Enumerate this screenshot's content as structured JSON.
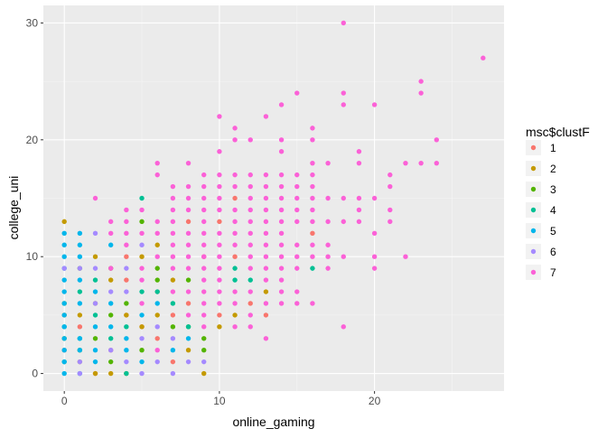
{
  "chart_data": {
    "type": "scatter",
    "xlabel": "online_gaming",
    "ylabel": "college_uni",
    "xlim": [
      -1.35,
      28.35
    ],
    "ylim": [
      -1.5,
      31.5
    ],
    "x_ticks": [
      0,
      10,
      20
    ],
    "y_ticks": [
      0,
      10,
      20,
      30
    ],
    "x_tick_labels": [
      "0",
      "10",
      "20"
    ],
    "y_tick_labels": [
      "0",
      "10",
      "20",
      "30"
    ],
    "grid": true,
    "legend": {
      "title": "msc$clustF",
      "position": "right",
      "entries": [
        "1",
        "2",
        "3",
        "4",
        "5",
        "6",
        "7"
      ]
    },
    "colors": {
      "1": "#F8766D",
      "2": "#C49A00",
      "3": "#53B400",
      "4": "#00C094",
      "5": "#00B6EB",
      "6": "#A58AFF",
      "7": "#FB61D7"
    },
    "series": [
      {
        "name": "1",
        "points": [
          [
            0,
            2
          ],
          [
            1,
            4
          ],
          [
            2,
            0
          ],
          [
            3,
            2
          ],
          [
            4,
            5
          ],
          [
            4,
            8
          ],
          [
            5,
            4
          ],
          [
            6,
            3
          ],
          [
            7,
            1
          ],
          [
            7,
            5
          ],
          [
            8,
            13
          ],
          [
            8,
            6
          ],
          [
            9,
            10
          ],
          [
            10,
            13
          ],
          [
            10,
            5
          ],
          [
            11,
            15
          ],
          [
            11,
            10
          ],
          [
            12,
            6
          ],
          [
            13,
            5
          ],
          [
            16,
            12
          ],
          [
            4,
            10
          ],
          [
            6,
            7
          ]
        ]
      },
      {
        "name": "2",
        "points": [
          [
            0,
            13
          ],
          [
            0,
            5
          ],
          [
            1,
            5
          ],
          [
            1,
            1
          ],
          [
            2,
            0
          ],
          [
            2,
            6
          ],
          [
            3,
            0
          ],
          [
            3,
            8
          ],
          [
            4,
            5
          ],
          [
            5,
            10
          ],
          [
            5,
            4
          ],
          [
            6,
            11
          ],
          [
            6,
            5
          ],
          [
            7,
            8
          ],
          [
            8,
            2
          ],
          [
            9,
            0
          ],
          [
            10,
            4
          ],
          [
            11,
            5
          ],
          [
            13,
            7
          ],
          [
            2,
            10
          ],
          [
            4,
            0
          ]
        ]
      },
      {
        "name": "3",
        "points": [
          [
            0,
            6
          ],
          [
            0,
            3
          ],
          [
            1,
            9
          ],
          [
            1,
            2
          ],
          [
            2,
            3
          ],
          [
            3,
            5
          ],
          [
            3,
            1
          ],
          [
            4,
            6
          ],
          [
            5,
            13
          ],
          [
            5,
            2
          ],
          [
            6,
            9
          ],
          [
            7,
            4
          ],
          [
            8,
            8
          ],
          [
            9,
            2
          ],
          [
            3,
            9
          ],
          [
            6,
            8
          ],
          [
            9,
            3
          ],
          [
            8,
            4
          ]
        ]
      },
      {
        "name": "4",
        "points": [
          [
            0,
            4
          ],
          [
            0,
            1
          ],
          [
            1,
            7
          ],
          [
            1,
            3
          ],
          [
            2,
            8
          ],
          [
            2,
            5
          ],
          [
            3,
            3
          ],
          [
            4,
            0
          ],
          [
            5,
            15
          ],
          [
            5,
            7
          ],
          [
            6,
            7
          ],
          [
            7,
            6
          ],
          [
            8,
            4
          ],
          [
            11,
            9
          ],
          [
            12,
            8
          ],
          [
            16,
            9
          ],
          [
            11,
            8
          ],
          [
            4,
            4
          ]
        ]
      },
      {
        "name": "5",
        "points": [
          [
            0,
            12
          ],
          [
            0,
            11
          ],
          [
            0,
            10
          ],
          [
            0,
            9
          ],
          [
            0,
            8
          ],
          [
            0,
            7
          ],
          [
            0,
            6
          ],
          [
            0,
            5
          ],
          [
            0,
            4
          ],
          [
            0,
            3
          ],
          [
            0,
            2
          ],
          [
            0,
            1
          ],
          [
            0,
            0
          ],
          [
            1,
            12
          ],
          [
            1,
            11
          ],
          [
            1,
            10
          ],
          [
            1,
            8
          ],
          [
            1,
            6
          ],
          [
            1,
            3
          ],
          [
            1,
            2
          ],
          [
            1,
            0
          ],
          [
            2,
            7
          ],
          [
            2,
            4
          ],
          [
            2,
            2
          ],
          [
            2,
            1
          ],
          [
            3,
            11
          ],
          [
            3,
            6
          ],
          [
            3,
            4
          ],
          [
            4,
            3
          ],
          [
            4,
            2
          ],
          [
            5,
            5
          ],
          [
            5,
            1
          ],
          [
            6,
            6
          ],
          [
            7,
            2
          ],
          [
            8,
            3
          ]
        ]
      },
      {
        "name": "6",
        "points": [
          [
            0,
            9
          ],
          [
            1,
            1
          ],
          [
            1,
            0
          ],
          [
            2,
            12
          ],
          [
            2,
            6
          ],
          [
            3,
            7
          ],
          [
            3,
            2
          ],
          [
            4,
            9
          ],
          [
            4,
            7
          ],
          [
            4,
            1
          ],
          [
            5,
            11
          ],
          [
            5,
            3
          ],
          [
            5,
            0
          ],
          [
            6,
            4
          ],
          [
            6,
            1
          ],
          [
            7,
            0
          ],
          [
            7,
            3
          ],
          [
            8,
            1
          ],
          [
            9,
            1
          ],
          [
            2,
            9
          ],
          [
            1,
            9
          ]
        ]
      },
      {
        "name": "7",
        "points": [
          [
            2,
            15
          ],
          [
            3,
            13
          ],
          [
            3,
            12
          ],
          [
            3,
            9
          ],
          [
            4,
            14
          ],
          [
            4,
            13
          ],
          [
            4,
            12
          ],
          [
            4,
            11
          ],
          [
            5,
            14
          ],
          [
            5,
            12
          ],
          [
            5,
            9
          ],
          [
            5,
            6
          ],
          [
            5,
            8
          ],
          [
            6,
            18
          ],
          [
            6,
            17
          ],
          [
            6,
            13
          ],
          [
            6,
            12
          ],
          [
            6,
            10
          ],
          [
            6,
            2
          ],
          [
            7,
            16
          ],
          [
            7,
            15
          ],
          [
            7,
            14
          ],
          [
            7,
            13
          ],
          [
            7,
            12
          ],
          [
            7,
            11
          ],
          [
            7,
            10
          ],
          [
            7,
            9
          ],
          [
            7,
            7
          ],
          [
            8,
            18
          ],
          [
            8,
            16
          ],
          [
            8,
            15
          ],
          [
            8,
            14
          ],
          [
            8,
            12
          ],
          [
            8,
            11
          ],
          [
            8,
            10
          ],
          [
            8,
            9
          ],
          [
            8,
            7
          ],
          [
            8,
            5
          ],
          [
            9,
            17
          ],
          [
            9,
            16
          ],
          [
            9,
            15
          ],
          [
            9,
            14
          ],
          [
            9,
            13
          ],
          [
            9,
            12
          ],
          [
            9,
            11
          ],
          [
            9,
            10
          ],
          [
            9,
            9
          ],
          [
            9,
            8
          ],
          [
            9,
            7
          ],
          [
            9,
            6
          ],
          [
            9,
            5
          ],
          [
            9,
            4
          ],
          [
            10,
            22
          ],
          [
            10,
            19
          ],
          [
            10,
            17
          ],
          [
            10,
            16
          ],
          [
            10,
            15
          ],
          [
            10,
            14
          ],
          [
            10,
            12
          ],
          [
            10,
            11
          ],
          [
            10,
            10
          ],
          [
            10,
            9
          ],
          [
            10,
            8
          ],
          [
            10,
            7
          ],
          [
            10,
            6
          ],
          [
            11,
            21
          ],
          [
            11,
            20
          ],
          [
            11,
            17
          ],
          [
            11,
            16
          ],
          [
            11,
            14
          ],
          [
            11,
            13
          ],
          [
            11,
            12
          ],
          [
            11,
            11
          ],
          [
            11,
            7
          ],
          [
            11,
            6
          ],
          [
            11,
            4
          ],
          [
            12,
            20
          ],
          [
            12,
            17
          ],
          [
            12,
            16
          ],
          [
            12,
            15
          ],
          [
            12,
            14
          ],
          [
            12,
            13
          ],
          [
            12,
            12
          ],
          [
            12,
            11
          ],
          [
            12,
            10
          ],
          [
            12,
            9
          ],
          [
            12,
            7
          ],
          [
            12,
            5
          ],
          [
            12,
            4
          ],
          [
            13,
            22
          ],
          [
            13,
            17
          ],
          [
            13,
            16
          ],
          [
            13,
            15
          ],
          [
            13,
            14
          ],
          [
            13,
            13
          ],
          [
            13,
            12
          ],
          [
            13,
            11
          ],
          [
            13,
            10
          ],
          [
            13,
            9
          ],
          [
            13,
            8
          ],
          [
            13,
            6
          ],
          [
            13,
            3
          ],
          [
            14,
            23
          ],
          [
            14,
            20
          ],
          [
            14,
            19
          ],
          [
            14,
            17
          ],
          [
            14,
            16
          ],
          [
            14,
            15
          ],
          [
            14,
            14
          ],
          [
            14,
            13
          ],
          [
            14,
            12
          ],
          [
            14,
            11
          ],
          [
            14,
            10
          ],
          [
            14,
            9
          ],
          [
            14,
            8
          ],
          [
            14,
            7
          ],
          [
            14,
            6
          ],
          [
            15,
            24
          ],
          [
            15,
            17
          ],
          [
            15,
            16
          ],
          [
            15,
            15
          ],
          [
            15,
            14
          ],
          [
            15,
            13
          ],
          [
            15,
            11
          ],
          [
            15,
            10
          ],
          [
            15,
            9
          ],
          [
            15,
            7
          ],
          [
            15,
            6
          ],
          [
            16,
            21
          ],
          [
            16,
            20
          ],
          [
            16,
            18
          ],
          [
            16,
            17
          ],
          [
            16,
            16
          ],
          [
            16,
            15
          ],
          [
            16,
            14
          ],
          [
            16,
            13
          ],
          [
            16,
            11
          ],
          [
            16,
            10
          ],
          [
            16,
            6
          ],
          [
            17,
            18
          ],
          [
            17,
            15
          ],
          [
            17,
            13
          ],
          [
            17,
            11
          ],
          [
            17,
            10
          ],
          [
            17,
            9
          ],
          [
            18,
            30
          ],
          [
            18,
            24
          ],
          [
            18,
            23
          ],
          [
            18,
            15
          ],
          [
            18,
            13
          ],
          [
            18,
            10
          ],
          [
            18,
            4
          ],
          [
            19,
            19
          ],
          [
            19,
            18
          ],
          [
            19,
            15
          ],
          [
            19,
            14
          ],
          [
            19,
            13
          ],
          [
            20,
            23
          ],
          [
            20,
            15
          ],
          [
            20,
            12
          ],
          [
            20,
            10
          ],
          [
            20,
            9
          ],
          [
            21,
            17
          ],
          [
            21,
            16
          ],
          [
            21,
            14
          ],
          [
            21,
            13
          ],
          [
            22,
            18
          ],
          [
            22,
            10
          ],
          [
            23,
            25
          ],
          [
            23,
            24
          ],
          [
            23,
            18
          ],
          [
            24,
            20
          ],
          [
            24,
            18
          ],
          [
            27,
            27
          ]
        ]
      }
    ]
  }
}
